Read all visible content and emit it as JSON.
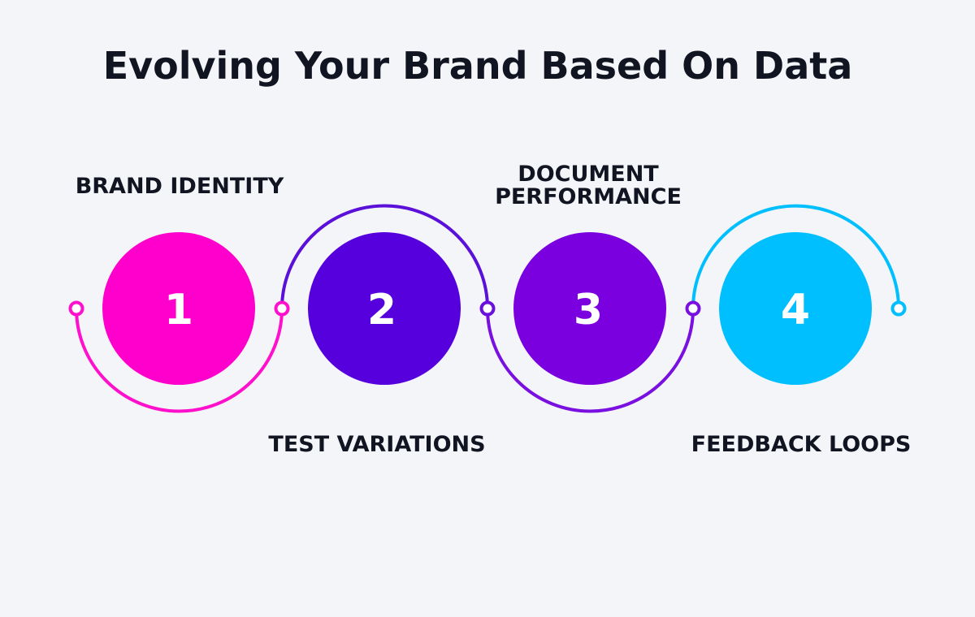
{
  "title": "Evolving Your Brand Based On Data",
  "steps": [
    {
      "number": "1",
      "label": [
        "BRAND IDENTITY"
      ]
    },
    {
      "number": "2",
      "label": [
        "TEST VARIATIONS"
      ]
    },
    {
      "number": "3",
      "label": [
        "DOCUMENT",
        "PERFORMANCE"
      ]
    },
    {
      "number": "4",
      "label": [
        "FEEDBACK LOOPS"
      ]
    }
  ]
}
